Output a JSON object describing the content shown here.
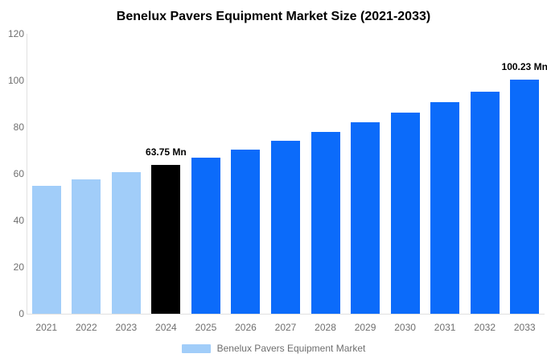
{
  "chart_data": {
    "type": "bar",
    "title": "Benelux Pavers Equipment Market Size (2021-2033)",
    "categories": [
      "2021",
      "2022",
      "2023",
      "2024",
      "2025",
      "2026",
      "2027",
      "2028",
      "2029",
      "2030",
      "2031",
      "2032",
      "2033"
    ],
    "series": [
      {
        "name": "Benelux Pavers Equipment Market",
        "values": [
          54.8,
          57.62,
          60.62,
          63.75,
          67.04,
          70.5,
          74.13,
          77.96,
          81.98,
          86.21,
          90.66,
          95.33,
          100.23
        ]
      }
    ],
    "bar_colors": [
      "#a1cdf9",
      "#a1cdf9",
      "#a1cdf9",
      "#000000",
      "#0b6bfa",
      "#0b6bfa",
      "#0b6bfa",
      "#0b6bfa",
      "#0b6bfa",
      "#0b6bfa",
      "#0b6bfa",
      "#0b6bfa",
      "#0b6bfa"
    ],
    "annotations": [
      {
        "index": 3,
        "text": "63.75 Mn"
      },
      {
        "index": 12,
        "text": "100.23 Mn"
      }
    ],
    "xlabel": "",
    "ylabel": "",
    "ylim": [
      0,
      120
    ],
    "yticks": [
      0,
      20,
      40,
      60,
      80,
      100,
      120
    ],
    "grid": false,
    "legend_position": "bottom",
    "colors": {
      "historical_bar": "#a1cdf9",
      "base_year_bar": "#000000",
      "forecast_bar": "#0b6bfa",
      "axis_line": "#e0e0e0",
      "tick_label": "#6f6f6f",
      "title_text": "#000000",
      "data_label_text": "#000000",
      "background": "#ffffff"
    }
  },
  "legend": {
    "label": "Benelux Pavers Equipment Market",
    "swatch_color": "#a1cdf9"
  }
}
